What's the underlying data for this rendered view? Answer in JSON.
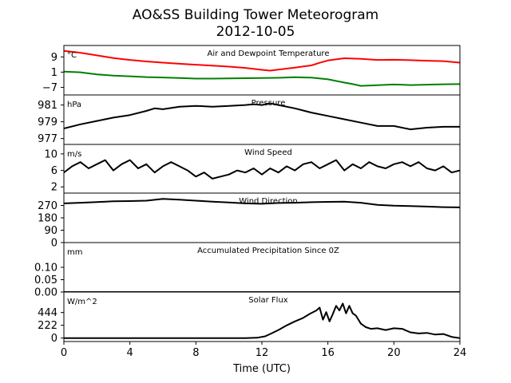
{
  "figure": {
    "title": "AO&SS Building Tower Meteorogram",
    "subtitle": "2012-10-05",
    "xlabel": "Time (UTC)"
  },
  "chart_data": {
    "type": "line",
    "x_ticks": [
      0,
      4,
      8,
      12,
      16,
      20,
      24
    ],
    "xlim": [
      0,
      24
    ],
    "panels": [
      {
        "label": "Air and Dewpoint Temperature",
        "unit": "°C",
        "ylim": [
          -11,
          15
        ],
        "y_ticks": [
          9,
          1,
          -7
        ],
        "y_tick_labels": [
          "9",
          "1",
          "−7"
        ],
        "series": [
          {
            "color": "#ff0000",
            "x": [
              0,
              1,
              2,
              3,
              4,
              5,
              6,
              7,
              8,
              9,
              10,
              11,
              12,
              12.5,
              13,
              14,
              15,
              15.5,
              16,
              17,
              18,
              19,
              20,
              21,
              22,
              23,
              24
            ],
            "y": [
              12.2,
              11.2,
              9.8,
              8.4,
              7.4,
              6.6,
              6.0,
              5.4,
              4.9,
              4.4,
              3.9,
              3.2,
              2.2,
              1.8,
              2.3,
              3.4,
              4.5,
              5.9,
              7.1,
              8.3,
              8.0,
              7.4,
              7.5,
              7.3,
              7.0,
              6.8,
              6.0
            ]
          },
          {
            "color": "#008000",
            "x": [
              0,
              1,
              2,
              3,
              4,
              5,
              6,
              7,
              8,
              9,
              10,
              11,
              12,
              13,
              14,
              15,
              16,
              17,
              17.5,
              18,
              19,
              20,
              21,
              22,
              23,
              24
            ],
            "y": [
              1.3,
              0.9,
              -0.2,
              -0.8,
              -1.2,
              -1.6,
              -1.8,
              -2.1,
              -2.4,
              -2.4,
              -2.3,
              -2.2,
              -2.1,
              -2.0,
              -1.7,
              -1.9,
              -2.8,
              -4.5,
              -5.3,
              -6.2,
              -5.9,
              -5.5,
              -5.8,
              -5.6,
              -5.4,
              -5.3
            ]
          }
        ]
      },
      {
        "label": "Pressure",
        "unit": "hPa",
        "ylim": [
          976.3,
          982.2
        ],
        "y_ticks": [
          981,
          979,
          977
        ],
        "y_tick_labels": [
          "981",
          "979",
          "977"
        ],
        "series": [
          {
            "color": "#000000",
            "x": [
              0,
              1,
              2,
              3,
              4,
              5,
              5.5,
              6,
              7,
              8,
              9,
              10,
              11,
              11.5,
              12,
              12.5,
              13,
              14,
              15,
              16,
              17,
              18,
              19,
              20,
              21,
              22,
              23,
              24
            ],
            "y": [
              978.2,
              978.7,
              979.1,
              979.5,
              979.8,
              980.3,
              980.6,
              980.5,
              980.8,
              980.9,
              980.8,
              980.9,
              981.0,
              981.1,
              981.0,
              981.2,
              981.0,
              980.6,
              980.1,
              979.7,
              979.3,
              978.9,
              978.5,
              978.5,
              978.1,
              978.3,
              978.4,
              978.4
            ]
          }
        ]
      },
      {
        "label": "Wind Speed",
        "unit": "m/s",
        "ylim": [
          0.5,
          12.3
        ],
        "y_ticks": [
          10,
          6,
          2
        ],
        "y_tick_labels": [
          "10",
          "6",
          "2"
        ],
        "series": [
          {
            "color": "#000000",
            "x": [
              0,
              0.5,
              1,
              1.5,
              2,
              2.5,
              3,
              3.5,
              4,
              4.5,
              5,
              5.5,
              6,
              6.5,
              7,
              7.5,
              8,
              8.5,
              9,
              9.5,
              10,
              10.5,
              11,
              11.5,
              12,
              12.5,
              13,
              13.5,
              14,
              14.5,
              15,
              15.5,
              16,
              16.5,
              17,
              17.5,
              18,
              18.5,
              19,
              19.5,
              20,
              20.5,
              21,
              21.5,
              22,
              22.5,
              23,
              23.5,
              24
            ],
            "y": [
              5.5,
              7.0,
              8.0,
              6.5,
              7.5,
              8.5,
              6.0,
              7.5,
              8.5,
              6.5,
              7.5,
              5.5,
              7.0,
              8.0,
              7.0,
              6.0,
              4.5,
              5.5,
              4.0,
              4.5,
              5.0,
              6.0,
              5.5,
              6.5,
              5.0,
              6.5,
              5.5,
              7.0,
              6.0,
              7.5,
              8.0,
              6.5,
              7.5,
              8.5,
              6.0,
              7.5,
              6.5,
              8.0,
              7.0,
              6.5,
              7.5,
              8.0,
              7.0,
              8.0,
              6.5,
              6.0,
              7.0,
              5.5,
              6.0
            ]
          }
        ]
      },
      {
        "label": "Wind Direction",
        "unit": "",
        "ylim": [
          0,
          360
        ],
        "y_ticks": [
          270,
          180,
          90,
          0
        ],
        "y_tick_labels": [
          "270",
          "180",
          "90",
          "0"
        ],
        "series": [
          {
            "color": "#000000",
            "x": [
              0,
              1,
              2,
              3,
              4,
              5,
              6,
              7,
              8,
              9,
              10,
              11,
              12,
              13,
              14,
              15,
              16,
              17,
              18,
              19,
              20,
              21,
              22,
              23,
              24
            ],
            "y": [
              285,
              290,
              295,
              300,
              302,
              305,
              318,
              312,
              305,
              298,
              292,
              285,
              282,
              288,
              290,
              294,
              296,
              298,
              290,
              274,
              268,
              266,
              262,
              258,
              256
            ]
          }
        ]
      },
      {
        "label": "Accumulated Precipitation Since 0Z",
        "unit": "mm",
        "ylim": [
          0,
          0.2
        ],
        "y_ticks": [
          0.1,
          0.05,
          0.0
        ],
        "y_tick_labels": [
          "0.10",
          "0.05",
          "0.00"
        ],
        "series": [
          {
            "color": "#000000",
            "x": [
              0,
              24
            ],
            "y": [
              0,
              0
            ]
          }
        ]
      },
      {
        "label": "Solar Flux",
        "unit": "W/m^2",
        "ylim": [
          -60,
          800
        ],
        "y_ticks": [
          444,
          222,
          0
        ],
        "y_tick_labels": [
          "444",
          "222",
          "0"
        ],
        "series": [
          {
            "color": "#000000",
            "x": [
              0,
              11,
              11.7,
              12.2,
              12.5,
              13,
              13.5,
              14,
              14.5,
              14.9,
              15.3,
              15.5,
              15.7,
              15.9,
              16.1,
              16.3,
              16.5,
              16.7,
              16.9,
              17.1,
              17.3,
              17.5,
              17.7,
              18,
              18.3,
              18.6,
              19,
              19.5,
              20,
              20.5,
              21,
              21.5,
              22,
              22.5,
              23,
              23.5,
              24
            ],
            "y": [
              0,
              0,
              5,
              30,
              70,
              140,
              220,
              290,
              350,
              420,
              480,
              530,
              320,
              450,
              290,
              420,
              560,
              480,
              600,
              430,
              560,
              430,
              390,
              250,
              190,
              160,
              170,
              140,
              170,
              160,
              100,
              80,
              90,
              60,
              70,
              20,
              0
            ]
          }
        ]
      }
    ]
  }
}
